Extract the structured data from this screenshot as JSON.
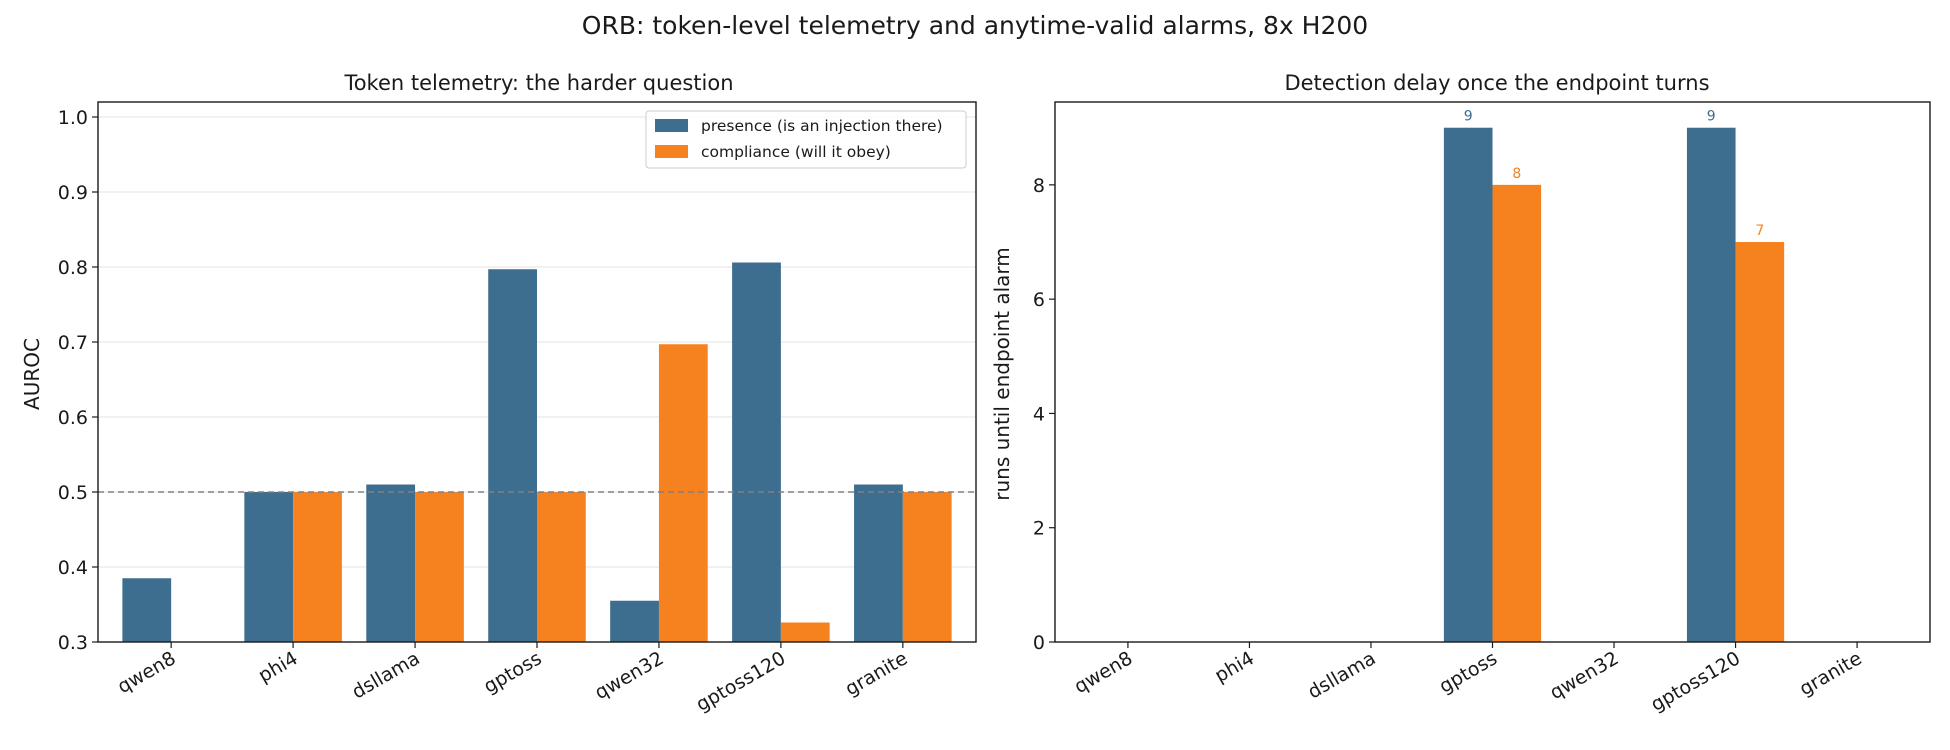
{
  "figure": {
    "title": "ORB: token-level telemetry and anytime-valid alarms, 8x H200"
  },
  "colors": {
    "presence": "#3d6e8f",
    "compliance": "#f5821f",
    "grid": "#e3e3e3",
    "reference": "#808080"
  },
  "chart_data": [
    {
      "type": "bar",
      "title": "Token telemetry: the harder question",
      "xlabel": "",
      "ylabel": "AUROC",
      "ylim": [
        0.3,
        1.02
      ],
      "yticks": [
        0.3,
        0.4,
        0.5,
        0.6,
        0.7,
        0.8,
        0.9,
        1.0
      ],
      "ytick_labels": [
        "0.3",
        "0.4",
        "0.5",
        "0.6",
        "0.7",
        "0.8",
        "0.9",
        "1.0"
      ],
      "grid": "horizontal",
      "reference_line": 0.5,
      "legend_position": "top-right",
      "categories": [
        "qwen8",
        "phi4",
        "dsllama",
        "gptoss",
        "qwen32",
        "gptoss120",
        "granite"
      ],
      "series": [
        {
          "name": "presence (is an injection there)",
          "values": [
            0.385,
            0.5,
            0.51,
            0.797,
            0.355,
            0.806,
            0.51
          ]
        },
        {
          "name": "compliance (will it obey)",
          "values": [
            null,
            0.5,
            0.5,
            0.5,
            0.697,
            0.326,
            0.5
          ]
        }
      ]
    },
    {
      "type": "bar",
      "title": "Detection delay once the endpoint turns",
      "xlabel": "",
      "ylabel": "runs until endpoint alarm",
      "ylim": [
        0,
        9.45
      ],
      "yticks": [
        0,
        2,
        4,
        6,
        8
      ],
      "ytick_labels": [
        "0",
        "2",
        "4",
        "6",
        "8"
      ],
      "grid": "none",
      "categories": [
        "qwen8",
        "phi4",
        "dsllama",
        "gptoss",
        "qwen32",
        "gptoss120",
        "granite"
      ],
      "series": [
        {
          "name": "presence",
          "values": [
            0,
            0,
            0,
            9,
            0,
            9,
            0
          ],
          "data_labels": [
            null,
            null,
            null,
            "9",
            null,
            "9",
            null
          ]
        },
        {
          "name": "compliance",
          "values": [
            0,
            0,
            0,
            8,
            0,
            7,
            0
          ],
          "data_labels": [
            null,
            null,
            null,
            "8",
            null,
            "7",
            null
          ]
        }
      ]
    }
  ]
}
